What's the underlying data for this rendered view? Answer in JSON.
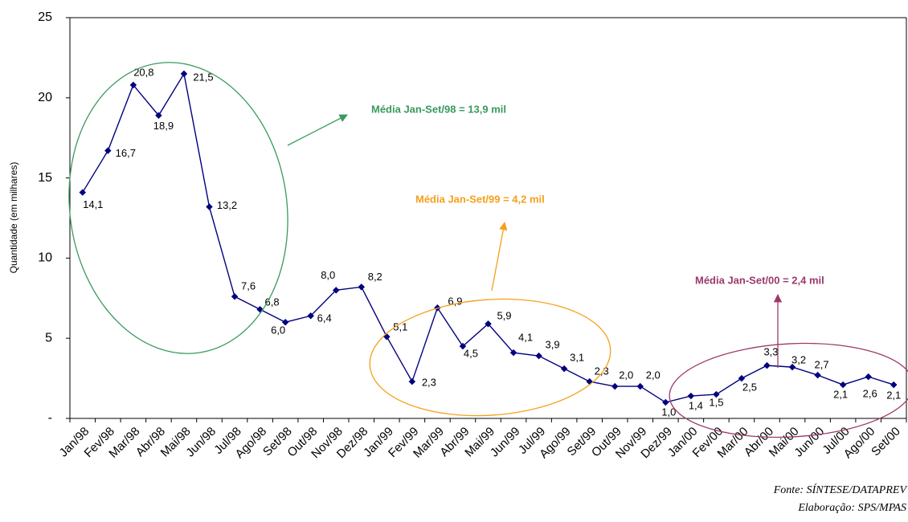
{
  "chart_data": {
    "type": "line",
    "y_label": "Quantidade (em milhares)",
    "categories": [
      "Jan/98",
      "Fev/98",
      "Mar/98",
      "Abr/98",
      "Mai/98",
      "Jun/98",
      "Jul/98",
      "Ago/98",
      "Set/98",
      "Out/98",
      "Nov/98",
      "Dez/98",
      "Jan/99",
      "Fev/99",
      "Mar/99",
      "Abr/99",
      "Mai/99",
      "Jun/99",
      "Jul/99",
      "Ago/99",
      "Set/99",
      "Out/99",
      "Nov/99",
      "Dez/99",
      "Jan/00",
      "Fev/00",
      "Mar/00",
      "Abr/00",
      "Mai/00",
      "Jun/00",
      "Jul/00",
      "Ago/00",
      "Set/00"
    ],
    "series": [
      {
        "color": "#000080",
        "values": [
          14.1,
          16.7,
          20.8,
          18.9,
          21.5,
          13.2,
          7.6,
          6.8,
          6.0,
          6.4,
          8.0,
          8.2,
          5.1,
          2.3,
          6.9,
          4.5,
          5.9,
          4.1,
          3.9,
          3.1,
          2.3,
          2.0,
          2.0,
          1.0,
          1.4,
          1.5,
          2.5,
          3.3,
          3.2,
          2.7,
          2.1,
          2.6,
          2.1
        ],
        "value_labels": [
          "14,1",
          "16,7",
          "20,8",
          "18,9",
          "21,5",
          "13,2",
          "7,6",
          "6,8",
          "6,0",
          "6,4",
          "8,0",
          "8,2",
          "5,1",
          "2,3",
          "6,9",
          "4,5",
          "5,9",
          "4,1",
          "3,9",
          "3,1",
          "2,3",
          "2,0",
          "2,0",
          "1,0",
          "1,4",
          "1,5",
          "2,5",
          "3,3",
          "3,2",
          "2,7",
          "2,1",
          "2,6",
          "2,1"
        ]
      }
    ],
    "ylim": [
      0,
      25
    ],
    "yticks": [
      {
        "value": 0,
        "label": "-"
      },
      5,
      10,
      15,
      20,
      25
    ],
    "annotations": [
      "Média Jan-Set/98 = 13,9 mil",
      "Média Jan-Set/99 = 4,2 mil",
      "Média Jan-Set/00 = 2,4 mil"
    ],
    "source": [
      "Fonte:  SÍNTESE/DATAPREV",
      "Elaboração:  SPS/MPAS"
    ]
  }
}
